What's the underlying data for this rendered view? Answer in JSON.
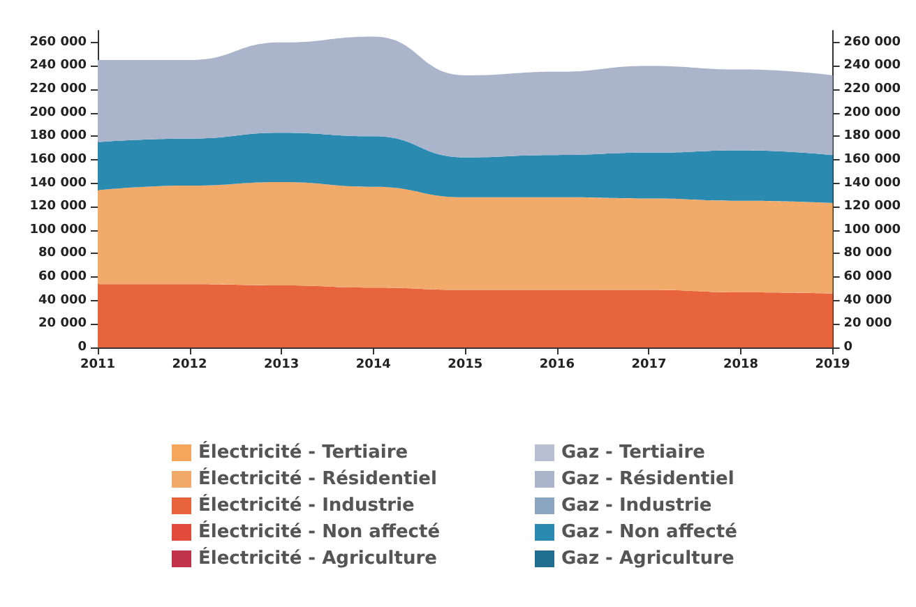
{
  "chart_data": {
    "type": "area",
    "stacked": true,
    "categories": [
      "2011",
      "2012",
      "2013",
      "2014",
      "2015",
      "2016",
      "2017",
      "2018",
      "2019"
    ],
    "series": [
      {
        "name": "Électricité - Agriculture",
        "color": "#c0334a",
        "values": [
          null,
          null,
          null,
          null,
          null,
          null,
          null,
          null,
          null
        ]
      },
      {
        "name": "Électricité - Non affecté",
        "color": "#e24a3c",
        "values": [
          null,
          null,
          null,
          null,
          null,
          null,
          null,
          null,
          null
        ]
      },
      {
        "name": "Électricité - Industrie",
        "color": "#e8643c",
        "values": [
          54000,
          54000,
          53000,
          51000,
          49000,
          49000,
          49000,
          47000,
          46000
        ]
      },
      {
        "name": "Électricité - Résidentiel",
        "color": "#f2aa6a",
        "values": [
          80000,
          84000,
          88000,
          86000,
          79000,
          79000,
          78000,
          78000,
          77000
        ]
      },
      {
        "name": "Électricité - Tertiaire",
        "color": "#f5a55c",
        "values": [
          null,
          null,
          null,
          null,
          null,
          null,
          null,
          null,
          null
        ]
      },
      {
        "name": "Gaz - Agriculture",
        "color": "#1f6e90",
        "values": [
          null,
          null,
          null,
          null,
          null,
          null,
          null,
          null,
          null
        ]
      },
      {
        "name": "Gaz - Non affecté",
        "color": "#2a8ab0",
        "values": [
          41000,
          40000,
          42000,
          43000,
          34000,
          36000,
          39000,
          43000,
          41000
        ]
      },
      {
        "name": "Gaz - Industrie",
        "color": "#8aa5c0",
        "values": [
          null,
          null,
          null,
          null,
          null,
          null,
          null,
          null,
          null
        ]
      },
      {
        "name": "Gaz - Résidentiel",
        "color": "#aab4cb",
        "values": [
          70000,
          67000,
          77000,
          85000,
          70000,
          71000,
          74000,
          69000,
          68000
        ]
      },
      {
        "name": "Gaz - Tertiaire",
        "color": "#b9bfd2",
        "values": [
          null,
          null,
          null,
          null,
          null,
          null,
          null,
          null,
          null
        ]
      }
    ],
    "ylim": [
      0,
      270000
    ],
    "yticks": [
      0,
      20000,
      40000,
      60000,
      80000,
      100000,
      120000,
      140000,
      160000,
      180000,
      200000,
      220000,
      240000,
      260000
    ],
    "y2lim": [
      0,
      270000
    ],
    "y2ticks": [
      0,
      20000,
      40000,
      60000,
      80000,
      100000,
      120000,
      140000,
      160000,
      180000,
      200000,
      220000,
      240000,
      260000
    ],
    "grid": false,
    "legend": "bottom",
    "marker": "none"
  }
}
